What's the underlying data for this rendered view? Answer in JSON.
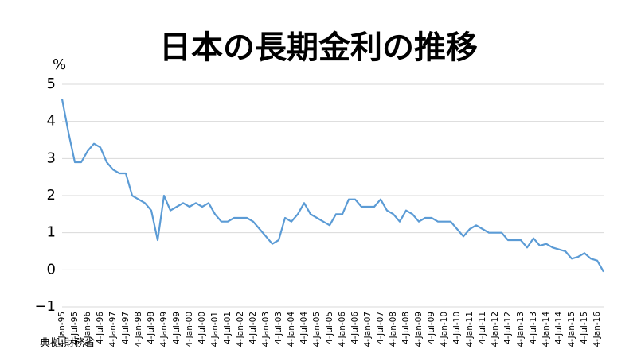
{
  "chart_data": {
    "type": "line",
    "title": "日本の長期金利の推移",
    "y_label": "%",
    "source": "典拠:財務省",
    "categories": [
      "4-Jan-95",
      null,
      "4-Jul-95",
      null,
      "4-Jan-96",
      null,
      "4-Jul-96",
      null,
      "4-Jan-97",
      null,
      "4-Jul-97",
      null,
      "4-Jan-98",
      null,
      "4-Jul-98",
      null,
      "4-Jan-99",
      null,
      "4-Jul-99",
      null,
      "4-Jan-00",
      null,
      "4-Jul-00",
      null,
      "4-Jan-01",
      null,
      "4-Jul-01",
      null,
      "4-Jan-02",
      null,
      "4-Jul-02",
      null,
      "4-Jan-03",
      null,
      "4-Jul-03",
      null,
      "4-Jan-04",
      null,
      "4-Jul-04",
      null,
      "4-Jan-05",
      null,
      "4-Jul-05",
      null,
      "4-Jan-06",
      null,
      "4-Jul-06",
      null,
      "4-Jan-07",
      null,
      "4-Jul-07",
      null,
      "4-Jan-08",
      null,
      "4-Jul-08",
      null,
      "4-Jan-09",
      null,
      "4-Jul-09",
      null,
      "4-Jan-10",
      null,
      "4-Jul-10",
      null,
      "4-Jan-11",
      null,
      "4-Jul-11",
      null,
      "4-Jan-12",
      null,
      "4-Jul-12",
      null,
      "4-Jan-13",
      null,
      "4-Jul-13",
      null,
      "4-Jan-14",
      null,
      "4-Jul-14",
      null,
      "4-Jan-15",
      null,
      "4-Jul-15",
      null,
      "4-Jan-16",
      null
    ],
    "values": [
      4.6,
      3.7,
      2.9,
      2.9,
      3.2,
      3.4,
      3.3,
      2.9,
      2.7,
      2.6,
      2.6,
      2.0,
      1.9,
      1.8,
      1.6,
      0.8,
      2.0,
      1.6,
      1.7,
      1.8,
      1.7,
      1.8,
      1.7,
      1.8,
      1.5,
      1.3,
      1.3,
      1.4,
      1.4,
      1.4,
      1.3,
      1.1,
      0.9,
      0.7,
      0.8,
      1.4,
      1.3,
      1.5,
      1.8,
      1.5,
      1.4,
      1.3,
      1.2,
      1.5,
      1.5,
      1.9,
      1.9,
      1.7,
      1.7,
      1.7,
      1.9,
      1.6,
      1.5,
      1.3,
      1.6,
      1.5,
      1.3,
      1.4,
      1.4,
      1.3,
      1.3,
      1.3,
      1.1,
      0.9,
      1.1,
      1.2,
      1.1,
      1.0,
      1.0,
      1.0,
      0.8,
      0.8,
      0.8,
      0.6,
      0.85,
      0.65,
      0.7,
      0.6,
      0.55,
      0.5,
      0.3,
      0.35,
      0.45,
      0.3,
      0.25,
      -0.05
    ],
    "color": "#5b9bd5",
    "ylim": [
      -1,
      5
    ],
    "yticks": [
      {
        "value": -1,
        "label": "−1"
      },
      0,
      1,
      2,
      3,
      4,
      5
    ],
    "grid": true
  }
}
